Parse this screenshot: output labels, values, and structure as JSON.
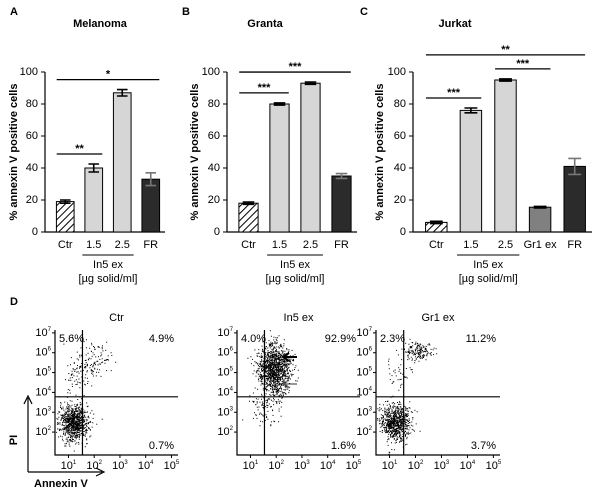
{
  "chart_data": [
    {
      "type": "bar",
      "panel": "A",
      "title": "Melanoma",
      "ylabel": "% annexin V positive cells",
      "categories": [
        "Ctr",
        "1.5",
        "2.5",
        "FR"
      ],
      "values": [
        19,
        40,
        87,
        33
      ],
      "errors": [
        1,
        2.5,
        2,
        4
      ],
      "fills": [
        "hatched",
        "#d6d6d6",
        "#d6d6d6",
        "#2b2b2b"
      ],
      "error_colors": [
        "#000000",
        "#000000",
        "#000000",
        "#777777"
      ],
      "ylim": [
        0,
        100
      ],
      "yticks": [
        0,
        20,
        40,
        60,
        80,
        100
      ],
      "group": {
        "label": "In5 ex",
        "unit": "[µg solid/ml]",
        "from": 1,
        "to": 2
      },
      "significance": [
        {
          "label": "**",
          "from": 0,
          "to": 1
        },
        {
          "label": "*",
          "from": 0,
          "to": 3
        }
      ]
    },
    {
      "type": "bar",
      "panel": "B",
      "title": "Granta",
      "ylabel": "% annexin V positive cells",
      "categories": [
        "Ctr",
        "1.5",
        "2.5",
        "FR"
      ],
      "values": [
        18,
        80,
        93,
        35
      ],
      "errors": [
        0.7,
        0.7,
        0.7,
        1.5
      ],
      "fills": [
        "hatched",
        "#d6d6d6",
        "#d6d6d6",
        "#2b2b2b"
      ],
      "error_colors": [
        "#000000",
        "#000000",
        "#000000",
        "#777777"
      ],
      "ylim": [
        0,
        100
      ],
      "yticks": [
        0,
        20,
        40,
        60,
        80,
        100
      ],
      "group": {
        "label": "In5 ex",
        "unit": "[µg solid/ml]",
        "from": 1,
        "to": 2
      },
      "significance": [
        {
          "label": "***",
          "from": 0,
          "to": 1
        },
        {
          "label": "***",
          "from": 0,
          "to": 3
        }
      ]
    },
    {
      "type": "bar",
      "panel": "C",
      "title": "Jurkat",
      "ylabel": "% annexin V positive cells",
      "categories": [
        "Ctr",
        "1.5",
        "2.5",
        "Gr1 ex",
        "FR"
      ],
      "values": [
        6,
        76,
        95,
        15.5,
        41
      ],
      "errors": [
        0.7,
        1.5,
        0.7,
        0.5,
        5
      ],
      "fills": [
        "hatched",
        "#d6d6d6",
        "#d6d6d6",
        "#808080",
        "#2b2b2b"
      ],
      "error_colors": [
        "#000000",
        "#000000",
        "#000000",
        "#000000",
        "#777777"
      ],
      "ylim": [
        0,
        100
      ],
      "yticks": [
        0,
        20,
        40,
        60,
        80,
        100
      ],
      "group": {
        "label": "In5 ex",
        "unit": "[µg solid/ml]",
        "from": 1,
        "to": 2
      },
      "significance": [
        {
          "label": "***",
          "from": 0,
          "to": 1
        },
        {
          "label": "***",
          "from": 2,
          "to": 3
        },
        {
          "label": "**",
          "from": 0,
          "to": 4
        }
      ]
    },
    {
      "type": "density",
      "panel": "D",
      "title": "Ctr",
      "xlabel": "Annexin V",
      "ylabel": "PI",
      "log_scale": true,
      "xlim": [
        3,
        180000
      ],
      "ylim": [
        7,
        14000000
      ],
      "gate_x": 35,
      "gate_y": 6000,
      "xticks": [
        {
          "value": 10,
          "label": "10^1"
        },
        {
          "value": 100,
          "label": "10^2"
        },
        {
          "value": 1000,
          "label": "10^3"
        },
        {
          "value": 10000,
          "label": "10^4"
        },
        {
          "value": 100000,
          "label": "10^5"
        }
      ],
      "yticks": [
        {
          "value": 100,
          "label": "10^2"
        },
        {
          "value": 1000,
          "label": "10^3"
        },
        {
          "value": 10000,
          "label": "10^4"
        },
        {
          "value": 100000,
          "label": "10^5"
        },
        {
          "value": 1000000,
          "label": "10^6"
        },
        {
          "value": 10000000,
          "label": "10^7"
        }
      ],
      "quadrant_positions": [
        "upper-left",
        "upper-right",
        "lower-right"
      ],
      "quadrant_values": [
        5.6,
        4.9,
        0.7
      ],
      "quadrant_labels": [
        "5.6%",
        "4.9%",
        "0.7%"
      ]
    },
    {
      "type": "density",
      "title": "In5 ex",
      "log_scale": true,
      "xlim": [
        3,
        180000
      ],
      "ylim": [
        7,
        14000000
      ],
      "gate_x": 35,
      "gate_y": 6000,
      "xticks": [
        {
          "value": 10,
          "label": "10^1"
        },
        {
          "value": 100,
          "label": "10^2"
        },
        {
          "value": 1000,
          "label": "10^3"
        },
        {
          "value": 10000,
          "label": "10^4"
        },
        {
          "value": 100000,
          "label": "10^5"
        }
      ],
      "yticks": [
        {
          "value": 100,
          "label": "10^2"
        },
        {
          "value": 1000,
          "label": "10^3"
        },
        {
          "value": 10000,
          "label": "10^4"
        },
        {
          "value": 100000,
          "label": "10^5"
        },
        {
          "value": 1000000,
          "label": "10^6"
        },
        {
          "value": 10000000,
          "label": "10^7"
        }
      ],
      "quadrant_positions": [
        "upper-left",
        "upper-right",
        "lower-right"
      ],
      "quadrant_values": [
        4.0,
        92.9,
        1.6
      ],
      "quadrant_labels": [
        "4.0%",
        "92.9%",
        "1.6%"
      ]
    },
    {
      "type": "density",
      "title": "Gr1 ex",
      "log_scale": true,
      "xlim": [
        3,
        180000
      ],
      "ylim": [
        7,
        14000000
      ],
      "gate_x": 35,
      "gate_y": 6000,
      "xticks": [
        {
          "value": 10,
          "label": "10^1"
        },
        {
          "value": 100,
          "label": "10^2"
        },
        {
          "value": 1000,
          "label": "10^3"
        },
        {
          "value": 10000,
          "label": "10^4"
        },
        {
          "value": 100000,
          "label": "10^5"
        }
      ],
      "yticks": [
        {
          "value": 100,
          "label": "10^2"
        },
        {
          "value": 1000,
          "label": "10^3"
        },
        {
          "value": 10000,
          "label": "10^4"
        },
        {
          "value": 100000,
          "label": "10^5"
        },
        {
          "value": 1000000,
          "label": "10^6"
        },
        {
          "value": 10000000,
          "label": "10^7"
        }
      ],
      "quadrant_positions": [
        "upper-left",
        "upper-right",
        "lower-right"
      ],
      "quadrant_values": [
        2.3,
        11.2,
        3.7
      ],
      "quadrant_labels": [
        "2.3%",
        "11.2%",
        "3.7%"
      ]
    }
  ]
}
